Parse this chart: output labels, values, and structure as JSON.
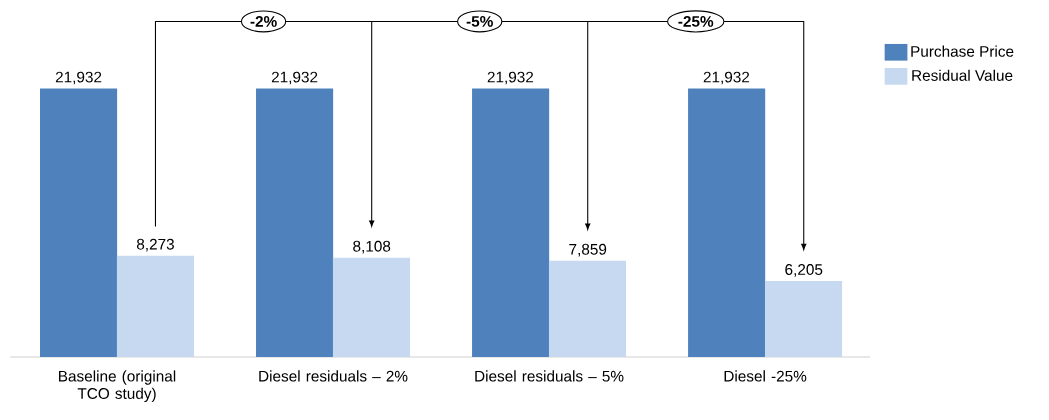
{
  "chart_data": {
    "type": "bar",
    "categories": [
      "Baseline (original TCO study)",
      "Diesel residuals – 2%",
      "Diesel residuals – 5%",
      "Diesel -25%"
    ],
    "series": [
      {
        "name": "Purchase Price",
        "color": "#4f81bd",
        "values": [
          21932,
          21932,
          21932,
          21932
        ],
        "value_labels": [
          "21,932",
          "21,932",
          "21,932",
          "21,932"
        ]
      },
      {
        "name": "Residual Value",
        "color": "#c6d9f0",
        "values": [
          8273,
          8108,
          7859,
          6205
        ],
        "value_labels": [
          "8,273",
          "8,108",
          "7,859",
          "6,205"
        ]
      }
    ],
    "annotations": [
      "-2%",
      "-5%",
      "-25%"
    ],
    "legend": "top right"
  }
}
